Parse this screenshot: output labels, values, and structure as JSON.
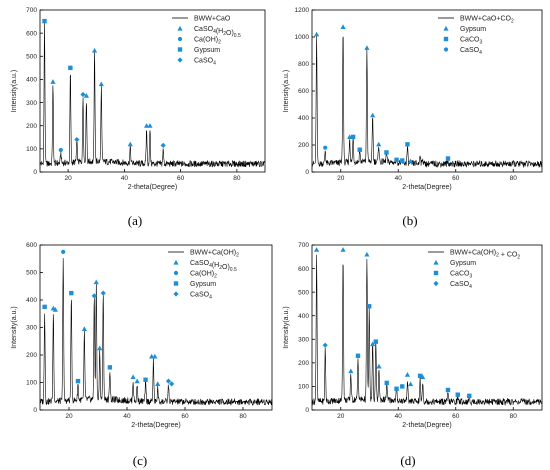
{
  "colors": {
    "marker": "#1e8fd6",
    "trace": "#000000",
    "axis": "#000000"
  },
  "chart_data": [
    {
      "type": "line",
      "panel_label": "(a)",
      "xlabel": "2-theta(Degree)",
      "ylabel": "Intensity(a.u.)",
      "xlim": [
        10,
        90
      ],
      "ylim": [
        0,
        700
      ],
      "xticks": [
        "20",
        "40",
        "60",
        "80"
      ],
      "yticks": [
        "0",
        "100",
        "200",
        "300",
        "400",
        "500",
        "600",
        "700"
      ],
      "series": [
        {
          "name": "BWW+CaO",
          "type": "line"
        }
      ],
      "legend": [
        {
          "label": "BWW+CaO",
          "marker": "line"
        },
        {
          "label": "CaSO4(H2O)0.5",
          "marker": "triangle"
        },
        {
          "label": "Ca(OH)2",
          "marker": "circle"
        },
        {
          "label": "Gypsum",
          "marker": "square"
        },
        {
          "label": "CaSO4",
          "marker": "diamond"
        }
      ],
      "peaks": [
        [
          11.6,
          640
        ],
        [
          14.6,
          370
        ],
        [
          17.4,
          80
        ],
        [
          20.8,
          430
        ],
        [
          23.1,
          125
        ],
        [
          25.3,
          320
        ],
        [
          26.5,
          310
        ],
        [
          29.4,
          510
        ],
        [
          31.8,
          360
        ],
        [
          42.1,
          105
        ],
        [
          47.9,
          185
        ],
        [
          49.1,
          185
        ],
        [
          53.8,
          95
        ]
      ],
      "markers": [
        {
          "x": 11.6,
          "y": 652,
          "type": "square"
        },
        {
          "x": 14.6,
          "y": 390,
          "type": "triangle"
        },
        {
          "x": 17.4,
          "y": 95,
          "type": "circle"
        },
        {
          "x": 20.8,
          "y": 450,
          "type": "square"
        },
        {
          "x": 23.1,
          "y": 140,
          "type": "diamond"
        },
        {
          "x": 25.3,
          "y": 335,
          "type": "diamond"
        },
        {
          "x": 26.5,
          "y": 330,
          "type": "triangle"
        },
        {
          "x": 29.4,
          "y": 525,
          "type": "triangle"
        },
        {
          "x": 31.8,
          "y": 380,
          "type": "triangle"
        },
        {
          "x": 42.1,
          "y": 120,
          "type": "triangle"
        },
        {
          "x": 47.9,
          "y": 200,
          "type": "triangle"
        },
        {
          "x": 49.1,
          "y": 200,
          "type": "triangle"
        },
        {
          "x": 53.8,
          "y": 115,
          "type": "diamond"
        }
      ]
    },
    {
      "type": "line",
      "panel_label": "(b)",
      "xlabel": "2-theta(Degree)",
      "ylabel": "Intensity(a.u.)",
      "xlim": [
        10,
        90
      ],
      "ylim": [
        0,
        1200
      ],
      "xticks": [
        "20",
        "40",
        "60",
        "80"
      ],
      "yticks": [
        "0",
        "200",
        "400",
        "600",
        "800",
        "1000",
        "1200"
      ],
      "series": [
        {
          "name": "BWW+CaO+CO2",
          "type": "line"
        }
      ],
      "legend": [
        {
          "label": "BWW+CaO+CO2",
          "marker": "line"
        },
        {
          "label": "Gypsum",
          "marker": "triangle"
        },
        {
          "label": "CaCO3",
          "marker": "square"
        },
        {
          "label": "CaSO4",
          "marker": "circle"
        }
      ],
      "peaks": [
        [
          11.6,
          1000
        ],
        [
          14.6,
          160
        ],
        [
          20.8,
          1050
        ],
        [
          23.1,
          240
        ],
        [
          24.3,
          240
        ],
        [
          26.6,
          150
        ],
        [
          29.1,
          900
        ],
        [
          31.1,
          400
        ],
        [
          33.2,
          190
        ],
        [
          35.9,
          130
        ],
        [
          39.4,
          100
        ],
        [
          43.2,
          180
        ],
        [
          47.6,
          140
        ],
        [
          48.5,
          100
        ],
        [
          57.3,
          80
        ]
      ],
      "markers": [
        {
          "x": 11.6,
          "y": 1020,
          "type": "triangle"
        },
        {
          "x": 14.6,
          "y": 180,
          "type": "circle"
        },
        {
          "x": 20.8,
          "y": 1075,
          "type": "triangle"
        },
        {
          "x": 23.1,
          "y": 260,
          "type": "triangle"
        },
        {
          "x": 24.3,
          "y": 260,
          "type": "square"
        },
        {
          "x": 26.6,
          "y": 165,
          "type": "square"
        },
        {
          "x": 29.1,
          "y": 920,
          "type": "triangle"
        },
        {
          "x": 31.1,
          "y": 420,
          "type": "triangle"
        },
        {
          "x": 33.2,
          "y": 205,
          "type": "triangle"
        },
        {
          "x": 35.9,
          "y": 145,
          "type": "square"
        },
        {
          "x": 39.4,
          "y": 90,
          "type": "square"
        },
        {
          "x": 43.2,
          "y": 205,
          "type": "square"
        },
        {
          "x": 41.4,
          "y": 85,
          "type": "square"
        },
        {
          "x": 44.3,
          "y": 80,
          "type": "triangle"
        },
        {
          "x": 57.3,
          "y": 100,
          "type": "square"
        }
      ]
    },
    {
      "type": "line",
      "panel_label": "(c)",
      "xlabel": "2-theta(Degree)",
      "ylabel": "Intensity(a.u.)",
      "xlim": [
        10,
        90
      ],
      "ylim": [
        0,
        600
      ],
      "xticks": [
        "20",
        "40",
        "60",
        "80"
      ],
      "yticks": [
        "0",
        "100",
        "200",
        "300",
        "400",
        "500",
        "600"
      ],
      "series": [
        {
          "name": "BWW+Ca(OH)2",
          "type": "line"
        }
      ],
      "legend": [
        {
          "label": "BWW+Ca(OH)2",
          "marker": "line"
        },
        {
          "label": "CaSO4(H2O)0.5",
          "marker": "triangle"
        },
        {
          "label": "Ca(OH)2",
          "marker": "circle"
        },
        {
          "label": "Gypsum",
          "marker": "square"
        },
        {
          "label": "CaSO4",
          "marker": "diamond"
        }
      ],
      "peaks": [
        [
          11.6,
          360
        ],
        [
          14.6,
          355
        ],
        [
          18.0,
          560
        ],
        [
          20.8,
          410
        ],
        [
          23.1,
          90
        ],
        [
          25.3,
          280
        ],
        [
          28.7,
          400
        ],
        [
          29.4,
          450
        ],
        [
          30.6,
          210
        ],
        [
          31.8,
          410
        ],
        [
          34.1,
          140
        ],
        [
          42.1,
          105
        ],
        [
          43.5,
          90
        ],
        [
          46.4,
          100
        ],
        [
          49.1,
          180
        ],
        [
          50.6,
          80
        ],
        [
          54.3,
          90
        ]
      ],
      "markers": [
        {
          "x": 11.6,
          "y": 375,
          "type": "square"
        },
        {
          "x": 14.6,
          "y": 370,
          "type": "triangle"
        },
        {
          "x": 15.3,
          "y": 365,
          "type": "triangle"
        },
        {
          "x": 18.0,
          "y": 575,
          "type": "circle"
        },
        {
          "x": 20.8,
          "y": 425,
          "type": "square"
        },
        {
          "x": 23.1,
          "y": 105,
          "type": "square"
        },
        {
          "x": 25.3,
          "y": 295,
          "type": "triangle"
        },
        {
          "x": 28.7,
          "y": 415,
          "type": "diamond"
        },
        {
          "x": 29.4,
          "y": 465,
          "type": "triangle"
        },
        {
          "x": 30.6,
          "y": 225,
          "type": "triangle"
        },
        {
          "x": 31.8,
          "y": 425,
          "type": "diamond"
        },
        {
          "x": 34.1,
          "y": 155,
          "type": "square"
        },
        {
          "x": 42.1,
          "y": 120,
          "type": "triangle"
        },
        {
          "x": 43.5,
          "y": 105,
          "type": "triangle"
        },
        {
          "x": 46.4,
          "y": 110,
          "type": "square"
        },
        {
          "x": 48.5,
          "y": 195,
          "type": "triangle"
        },
        {
          "x": 49.6,
          "y": 195,
          "type": "triangle"
        },
        {
          "x": 50.6,
          "y": 95,
          "type": "triangle"
        },
        {
          "x": 54.3,
          "y": 105,
          "type": "diamond"
        },
        {
          "x": 55.4,
          "y": 95,
          "type": "diamond"
        }
      ]
    },
    {
      "type": "line",
      "panel_label": "(d)",
      "xlabel": "2-theta(Degree)",
      "ylabel": "Intensity(a.u.)",
      "xlim": [
        10,
        90
      ],
      "ylim": [
        0,
        700
      ],
      "xticks": [
        "20",
        "40",
        "60",
        "80"
      ],
      "yticks": [
        "0",
        "100",
        "200",
        "300",
        "400",
        "500",
        "600",
        "700"
      ],
      "series": [
        {
          "name": "BWW+Ca(OH)2 + CO2",
          "type": "line"
        }
      ],
      "legend": [
        {
          "label": "BWW+Ca(OH)2 + CO2",
          "marker": "line"
        },
        {
          "label": "Gypsum",
          "marker": "triangle"
        },
        {
          "label": "CaCO3",
          "marker": "square"
        },
        {
          "label": "CaSO4",
          "marker": "diamond"
        }
      ],
      "peaks": [
        [
          11.6,
          660
        ],
        [
          14.6,
          260
        ],
        [
          20.8,
          660
        ],
        [
          23.5,
          150
        ],
        [
          26.0,
          210
        ],
        [
          29.1,
          640
        ],
        [
          29.9,
          420
        ],
        [
          31.1,
          270
        ],
        [
          32.2,
          280
        ],
        [
          33.3,
          170
        ],
        [
          36.0,
          100
        ],
        [
          39.4,
          80
        ],
        [
          43.2,
          130
        ],
        [
          47.6,
          130
        ],
        [
          48.5,
          120
        ],
        [
          57.3,
          70
        ],
        [
          60.7,
          55
        ],
        [
          64.7,
          50
        ]
      ],
      "markers": [
        {
          "x": 11.6,
          "y": 680,
          "type": "triangle"
        },
        {
          "x": 14.6,
          "y": 275,
          "type": "diamond"
        },
        {
          "x": 20.8,
          "y": 680,
          "type": "triangle"
        },
        {
          "x": 23.5,
          "y": 165,
          "type": "triangle"
        },
        {
          "x": 26.0,
          "y": 230,
          "type": "square"
        },
        {
          "x": 29.1,
          "y": 660,
          "type": "triangle"
        },
        {
          "x": 29.9,
          "y": 440,
          "type": "square"
        },
        {
          "x": 31.1,
          "y": 280,
          "type": "triangle"
        },
        {
          "x": 32.2,
          "y": 290,
          "type": "square"
        },
        {
          "x": 33.3,
          "y": 185,
          "type": "triangle"
        },
        {
          "x": 36.0,
          "y": 115,
          "type": "square"
        },
        {
          "x": 39.4,
          "y": 90,
          "type": "square"
        },
        {
          "x": 41.4,
          "y": 100,
          "type": "square"
        },
        {
          "x": 43.2,
          "y": 150,
          "type": "triangle"
        },
        {
          "x": 44.3,
          "y": 110,
          "type": "triangle"
        },
        {
          "x": 47.6,
          "y": 145,
          "type": "square"
        },
        {
          "x": 48.5,
          "y": 140,
          "type": "triangle"
        },
        {
          "x": 57.3,
          "y": 85,
          "type": "square"
        },
        {
          "x": 60.7,
          "y": 65,
          "type": "square"
        },
        {
          "x": 64.7,
          "y": 60,
          "type": "square"
        }
      ]
    }
  ]
}
